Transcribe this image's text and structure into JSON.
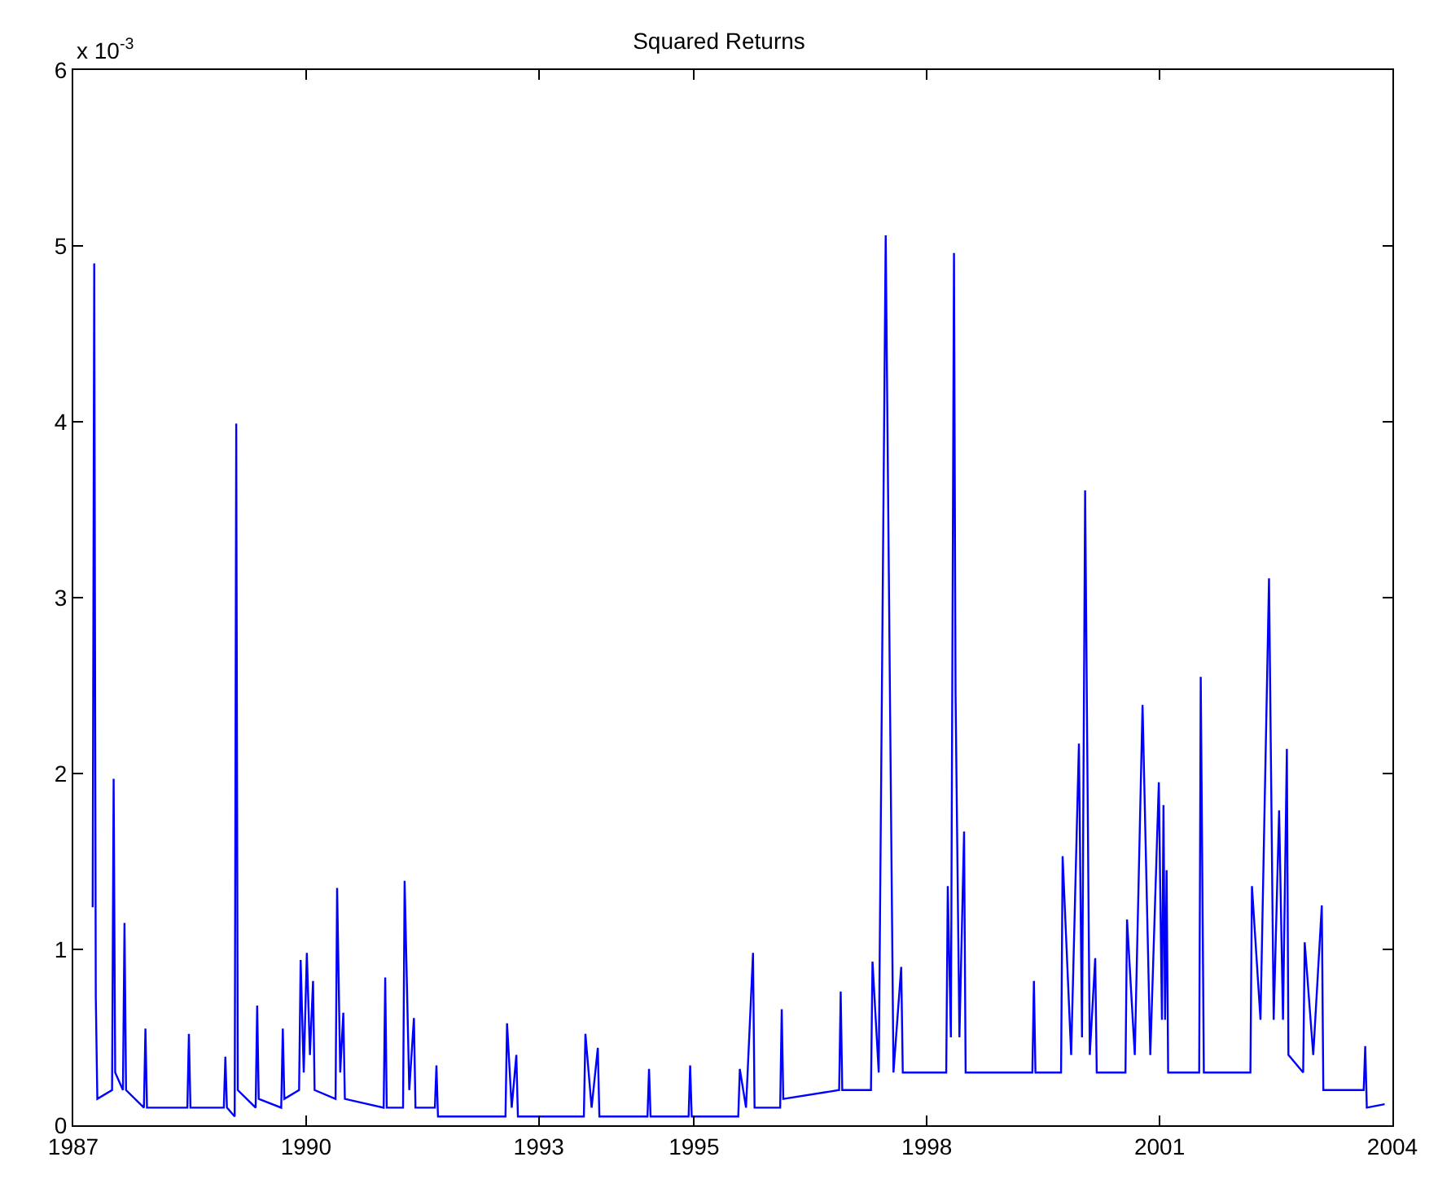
{
  "chart_data": {
    "type": "line",
    "title": "Squared Returns",
    "annotations": [
      "x 10$^{-3}$"
    ],
    "series": [
      {
        "color": "#0000ff",
        "x": [
          1987.25,
          1987.27,
          1987.29,
          1987.31,
          1987.5,
          1987.52,
          1987.54,
          1987.64,
          1987.66,
          1987.68,
          1987.91,
          1987.93,
          1987.95,
          1988.47,
          1988.49,
          1988.51,
          1988.94,
          1988.96,
          1988.98,
          1989.08,
          1989.1,
          1989.12,
          1989.35,
          1989.37,
          1989.39,
          1989.68,
          1989.7,
          1989.72,
          1989.91,
          1989.93,
          1989.97,
          1990.01,
          1990.05,
          1990.09,
          1990.11,
          1990.38,
          1990.4,
          1990.44,
          1990.48,
          1990.5,
          1991.0,
          1991.02,
          1991.04,
          1991.25,
          1991.27,
          1991.33,
          1991.39,
          1991.41,
          1991.66,
          1991.68,
          1991.7,
          1992.57,
          1992.59,
          1992.65,
          1992.71,
          1992.73,
          1993.58,
          1993.6,
          1993.68,
          1993.76,
          1993.78,
          1994.4,
          1994.42,
          1994.44,
          1994.93,
          1994.95,
          1994.97,
          1995.57,
          1995.59,
          1995.67,
          1995.76,
          1995.78,
          1996.11,
          1996.13,
          1996.15,
          1996.87,
          1996.89,
          1996.91,
          1997.28,
          1997.3,
          1997.38,
          1997.47,
          1997.57,
          1997.67,
          1997.69,
          1998.25,
          1998.27,
          1998.31,
          1998.35,
          1998.37,
          1998.42,
          1998.48,
          1998.5,
          1999.36,
          1999.38,
          1999.4,
          1999.73,
          1999.75,
          1999.86,
          1999.96,
          2000.0,
          2000.04,
          2000.1,
          2000.17,
          2000.19,
          2000.56,
          2000.58,
          2000.68,
          2000.78,
          2000.88,
          2000.99,
          2001.03,
          2001.05,
          2001.07,
          2001.09,
          2001.11,
          2001.51,
          2001.53,
          2001.55,
          2001.57,
          2002.17,
          2002.19,
          2002.3,
          2002.41,
          2002.47,
          2002.54,
          2002.59,
          2002.64,
          2002.66,
          2002.85,
          2002.87,
          2002.98,
          2003.09,
          2003.11,
          2003.63,
          2003.65,
          2003.67,
          2003.9
        ],
        "values": [
          1.24,
          4.9,
          0.73,
          0.15,
          0.2,
          1.97,
          0.3,
          0.2,
          1.15,
          0.2,
          0.1,
          0.55,
          0.1,
          0.1,
          0.52,
          0.1,
          0.1,
          0.39,
          0.1,
          0.05,
          3.99,
          0.2,
          0.1,
          0.68,
          0.15,
          0.1,
          0.55,
          0.15,
          0.2,
          0.94,
          0.3,
          0.98,
          0.4,
          0.82,
          0.2,
          0.15,
          1.35,
          0.3,
          0.64,
          0.15,
          0.1,
          0.84,
          0.1,
          0.1,
          1.39,
          0.2,
          0.61,
          0.1,
          0.1,
          0.34,
          0.05,
          0.05,
          0.58,
          0.1,
          0.4,
          0.05,
          0.05,
          0.52,
          0.1,
          0.44,
          0.05,
          0.05,
          0.32,
          0.05,
          0.05,
          0.34,
          0.05,
          0.05,
          0.32,
          0.1,
          0.98,
          0.1,
          0.1,
          0.66,
          0.15,
          0.2,
          0.76,
          0.2,
          0.2,
          0.93,
          0.3,
          5.06,
          0.3,
          0.9,
          0.3,
          0.3,
          1.36,
          0.5,
          4.96,
          2.46,
          0.5,
          1.67,
          0.3,
          0.3,
          0.82,
          0.3,
          0.3,
          1.53,
          0.4,
          2.17,
          0.5,
          3.61,
          0.4,
          0.95,
          0.3,
          0.3,
          1.17,
          0.4,
          2.39,
          0.4,
          1.95,
          0.6,
          1.82,
          0.6,
          1.45,
          0.3,
          0.3,
          2.55,
          1.45,
          0.3,
          0.3,
          1.36,
          0.6,
          3.11,
          0.6,
          1.79,
          0.6,
          2.14,
          0.4,
          0.3,
          1.04,
          0.4,
          1.25,
          0.2,
          0.2,
          0.45,
          0.1,
          0.12
        ]
      }
    ],
    "xlim": [
      1987,
      2004
    ],
    "xticks": [
      1987,
      1990,
      1993,
      1995,
      1998,
      2001,
      2004
    ],
    "ylim": [
      0,
      6
    ],
    "yticks": [
      0,
      1,
      2,
      3,
      4,
      5,
      6
    ],
    "marker": "none",
    "line_style": "solid"
  }
}
